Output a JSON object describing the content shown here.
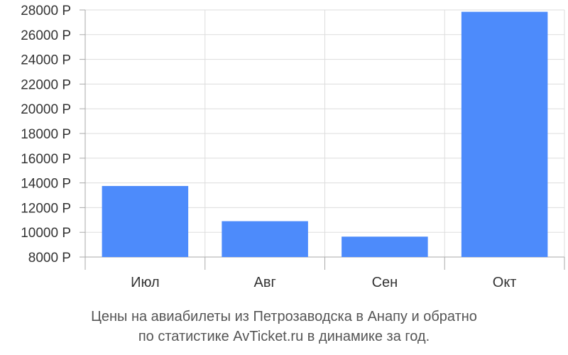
{
  "chart_data": {
    "type": "bar",
    "categories": [
      "Июл",
      "Авг",
      "Сен",
      "Окт"
    ],
    "values": [
      13750,
      10900,
      9650,
      27850
    ],
    "ylim": [
      8000,
      28000
    ],
    "yticks": [
      8000,
      10000,
      12000,
      14000,
      16000,
      18000,
      20000,
      22000,
      24000,
      26000,
      28000
    ],
    "ytick_labels": [
      "8000 Р",
      "10000 Р",
      "12000 Р",
      "14000 Р",
      "16000 Р",
      "18000 Р",
      "20000 Р",
      "22000 Р",
      "24000 Р",
      "26000 Р",
      "28000 Р"
    ],
    "grid": true,
    "bar_color": "#4d8bfb",
    "grid_color": "#dddddd",
    "axis_color": "#aaaaaa"
  },
  "caption": {
    "line1": "Цены на авиабилеты из Петрозаводска в Анапу и обратно",
    "line2": "по статистике AvTicket.ru в динамике за год."
  }
}
